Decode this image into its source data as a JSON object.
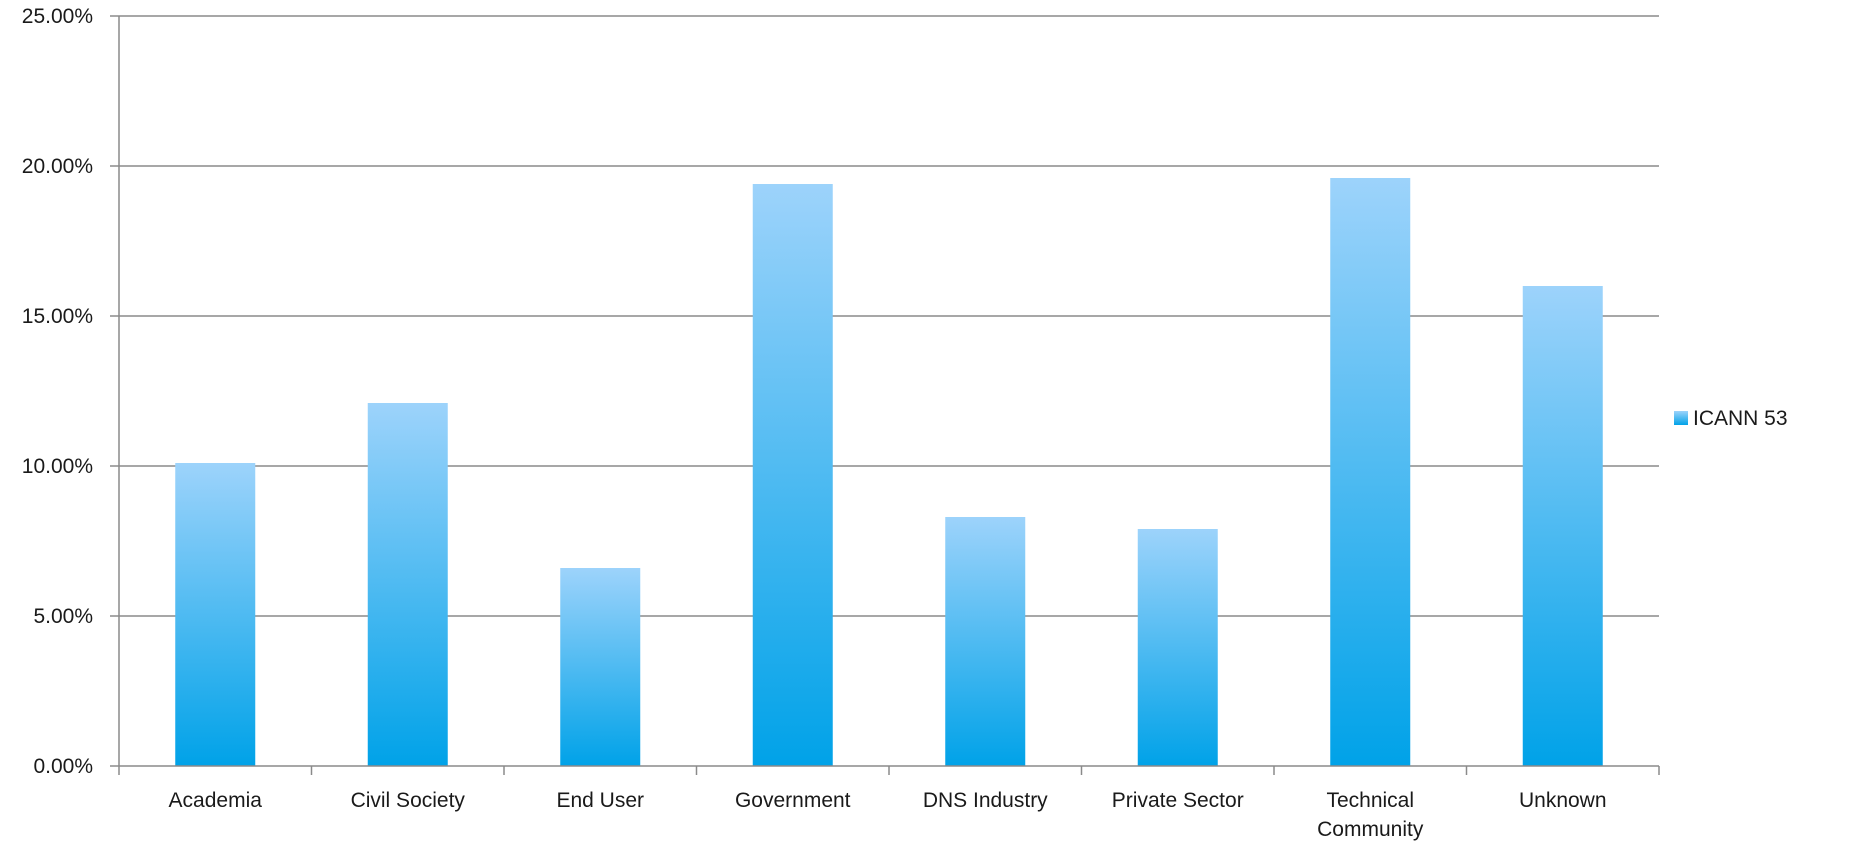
{
  "chart_data": {
    "type": "bar",
    "categories": [
      "Academia",
      "Civil Society",
      "End User",
      "Government",
      "DNS Industry",
      "Private Sector",
      "Technical Community",
      "Unknown"
    ],
    "series": [
      {
        "name": "ICANN 53",
        "values": [
          10.1,
          12.1,
          6.6,
          19.4,
          8.3,
          7.9,
          19.6,
          16.0
        ]
      }
    ],
    "y_ticks": [
      "0.00%",
      "5.00%",
      "10.00%",
      "15.00%",
      "20.00%",
      "25.00%"
    ],
    "ylim": [
      0,
      25
    ],
    "title": "",
    "xlabel": "",
    "ylabel": "",
    "grid": true,
    "legend_position": "right",
    "colors": {
      "bar_top": "#9dd3fb",
      "bar_bottom": "#00a2e8",
      "gridline": "#8a8a8a",
      "axis": "#8a8a8a"
    }
  }
}
